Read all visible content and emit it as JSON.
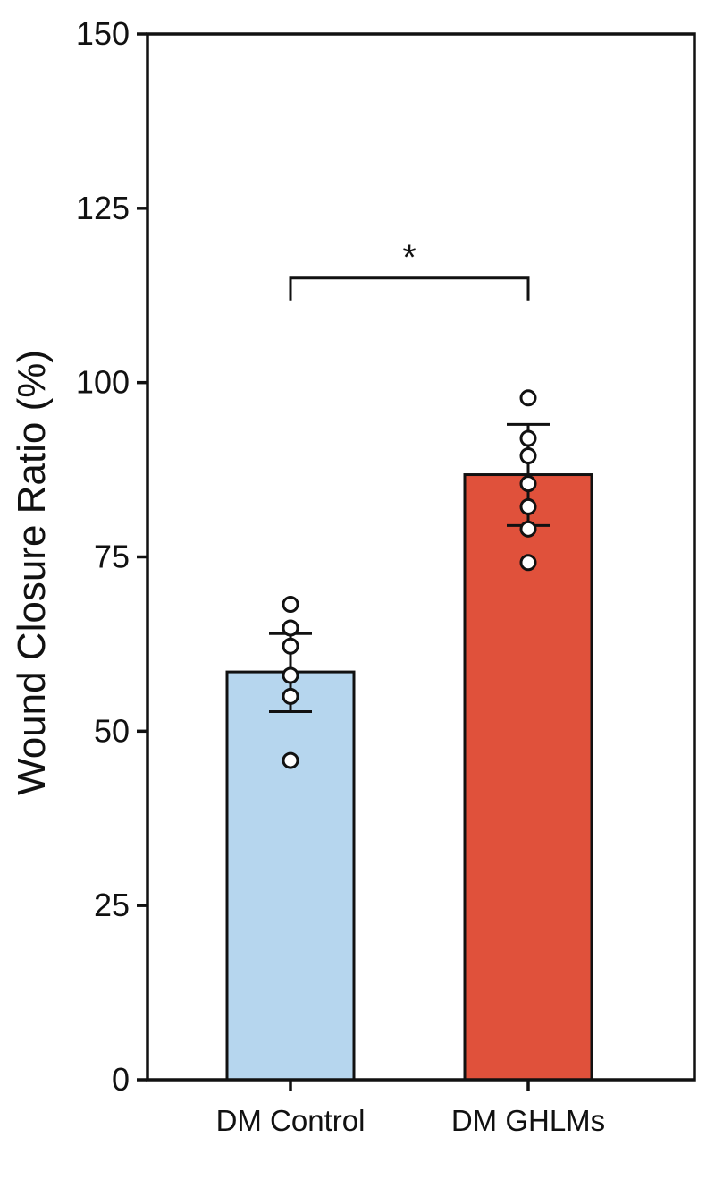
{
  "chart_data": {
    "type": "bar",
    "title": "",
    "xlabel": "",
    "ylabel": "Wound Closure Ratio (%)",
    "ylim": [
      0,
      150
    ],
    "yticks": [
      0,
      25,
      50,
      75,
      100,
      125,
      150
    ],
    "grid": false,
    "legend": "none",
    "categories": [
      "DM Control",
      "DM GHLMs"
    ],
    "series": [
      {
        "values": [
          58.5,
          86.8
        ],
        "error_high": [
          64,
          94
        ],
        "error_low": [
          52.8,
          79.5
        ],
        "points": [
          [
            68.2,
            64.8,
            62.2,
            58,
            55,
            45.8
          ],
          [
            97.8,
            92,
            89.5,
            85.5,
            82.2,
            79,
            74.2
          ]
        ]
      }
    ],
    "bar_colors": [
      "#b6d6ee",
      "#e0513b"
    ],
    "significance": {
      "between": [
        "DM Control",
        "DM GHLMs"
      ],
      "bracket_y": 115,
      "label": "*"
    }
  }
}
